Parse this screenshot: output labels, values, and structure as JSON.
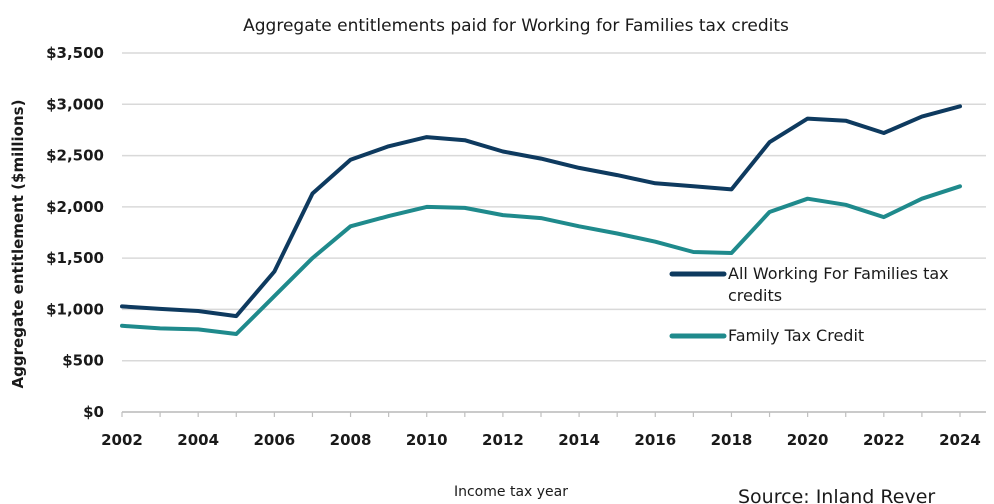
{
  "chart_data": {
    "type": "line",
    "title": "Aggregate entitlements paid for Working for Families tax credits",
    "xlabel": "Income tax year",
    "ylabel": "Aggregate entitlement ($millions)",
    "ylim": [
      0,
      3500
    ],
    "y_ticks": [
      0,
      500,
      1000,
      1500,
      2000,
      2500,
      3000,
      3500
    ],
    "y_tick_labels": [
      "$0",
      "$500",
      "$1,000",
      "$1,500",
      "$2,000",
      "$2,500",
      "$3,000",
      "$3,500"
    ],
    "xlim": [
      2002,
      2024
    ],
    "x_ticks": [
      2002,
      2004,
      2006,
      2008,
      2010,
      2012,
      2014,
      2016,
      2018,
      2020,
      2022,
      2024
    ],
    "x_tick_labels": [
      "2002",
      "2004",
      "2006",
      "2008",
      "2010",
      "2012",
      "2014",
      "2016",
      "2018",
      "2020",
      "2022",
      "2024"
    ],
    "grid": true,
    "legend_position": "right",
    "x": [
      2002,
      2003,
      2004,
      2005,
      2006,
      2007,
      2008,
      2009,
      2010,
      2011,
      2012,
      2013,
      2014,
      2015,
      2016,
      2017,
      2018,
      2019,
      2020,
      2021,
      2022,
      2023,
      2024
    ],
    "series": [
      {
        "name": "All Working For Families tax credits",
        "name_lines": [
          "All Working For Families tax",
          "credits"
        ],
        "color": "#0e3a5f",
        "values": [
          1030,
          1005,
          985,
          935,
          1370,
          2130,
          2460,
          2590,
          2680,
          2650,
          2540,
          2470,
          2380,
          2310,
          2230,
          2200,
          2170,
          2630,
          2860,
          2840,
          2720,
          2880,
          2980
        ]
      },
      {
        "name": "Family Tax Credit",
        "name_lines": [
          "Family Tax Credit"
        ],
        "color": "#1f8a8c",
        "values": [
          840,
          815,
          805,
          760,
          1130,
          1500,
          1810,
          1910,
          2000,
          1990,
          1920,
          1890,
          1810,
          1740,
          1660,
          1560,
          1550,
          1950,
          2080,
          2020,
          1900,
          2080,
          2200
        ]
      }
    ],
    "source": "Source: Inland Rever"
  }
}
